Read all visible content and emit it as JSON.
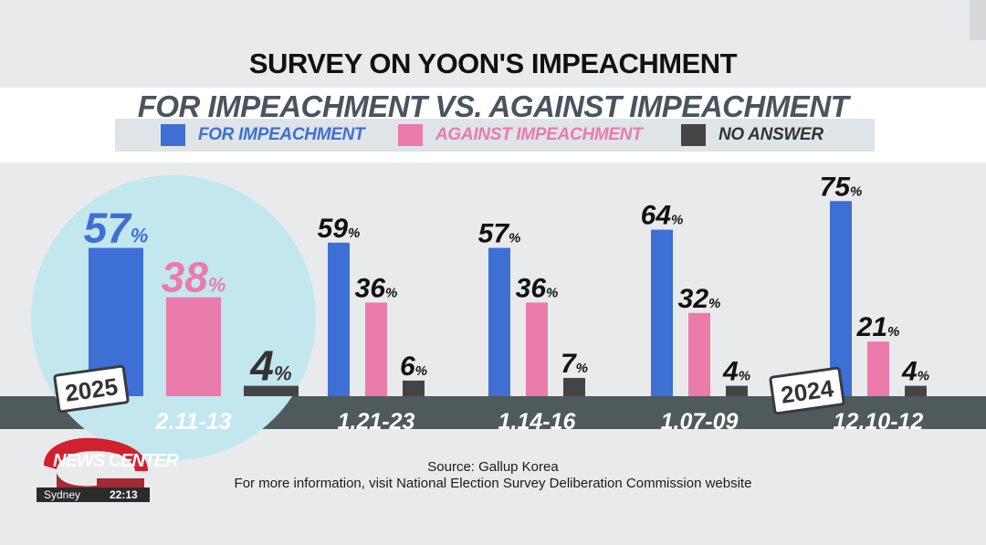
{
  "title": "SURVEY ON YOON'S IMPEACHMENT",
  "subtitle": "FOR IMPEACHMENT VS. AGAINST IMPEACHMENT",
  "colors": {
    "for": "#3e6fd4",
    "against": "#ea7bab",
    "no_answer": "#444444",
    "highlight_circle": "#c3e7ef",
    "floor": "#4e5a5b"
  },
  "legend": [
    {
      "key": "for",
      "label": "FOR IMPEACHMENT"
    },
    {
      "key": "against",
      "label": "AGAINST IMPEACHMENT"
    },
    {
      "key": "no_answer",
      "label": "NO ANSWER"
    }
  ],
  "chart_data": {
    "type": "bar",
    "title": "SURVEY ON YOON'S IMPEACHMENT",
    "subtitle": "FOR IMPEACHMENT VS. AGAINST IMPEACHMENT",
    "categories": [
      "2.11-13",
      "1.21-23",
      "1.14-16",
      "1.07-09",
      "12.10-12"
    ],
    "series": [
      {
        "name": "FOR IMPEACHMENT",
        "values": [
          57,
          59,
          57,
          64,
          75
        ]
      },
      {
        "name": "AGAINST IMPEACHMENT",
        "values": [
          38,
          36,
          36,
          32,
          21
        ]
      },
      {
        "name": "NO ANSWER",
        "values": [
          4,
          6,
          7,
          4,
          4
        ]
      }
    ],
    "unit": "%",
    "year_badges": [
      {
        "category": "2.11-13",
        "label": "2025"
      },
      {
        "category": "12.10-12",
        "label": "2024"
      }
    ],
    "highlighted_category": "2.11-13",
    "ylim": [
      0,
      100
    ],
    "xlabel": "",
    "ylabel": ""
  },
  "footer": {
    "source": "Source: Gallup Korea",
    "info": "For more information, visit National Election Survey Deliberation Commission website"
  },
  "brand": {
    "name": "NEWS CENTER",
    "city": "Sydney",
    "time": "22:13"
  }
}
